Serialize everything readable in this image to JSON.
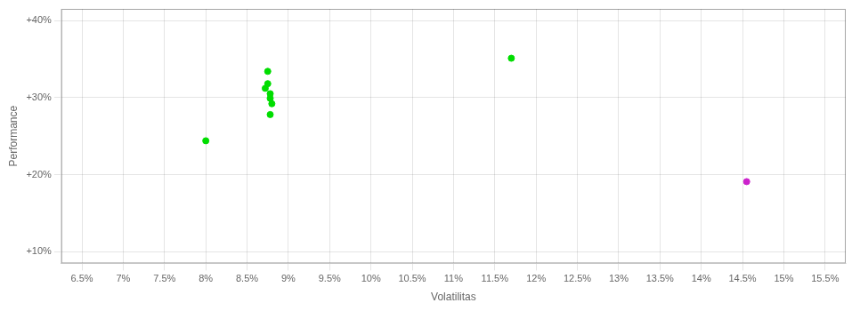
{
  "chart_data": {
    "type": "scatter",
    "xlabel": "Volatilitas",
    "ylabel": "Performance",
    "xlim": [
      0.0625,
      0.1575
    ],
    "ylim": [
      0.085,
      0.415
    ],
    "xticks": [
      {
        "value": 0.065,
        "label": "6.5%"
      },
      {
        "value": 0.07,
        "label": "7%"
      },
      {
        "value": 0.075,
        "label": "7.5%"
      },
      {
        "value": 0.08,
        "label": "8%"
      },
      {
        "value": 0.085,
        "label": "8.5%"
      },
      {
        "value": 0.09,
        "label": "9%"
      },
      {
        "value": 0.095,
        "label": "9.5%"
      },
      {
        "value": 0.1,
        "label": "10%"
      },
      {
        "value": 0.105,
        "label": "10.5%"
      },
      {
        "value": 0.11,
        "label": "11%"
      },
      {
        "value": 0.115,
        "label": "11.5%"
      },
      {
        "value": 0.12,
        "label": "12%"
      },
      {
        "value": 0.125,
        "label": "12.5%"
      },
      {
        "value": 0.13,
        "label": "13%"
      },
      {
        "value": 0.135,
        "label": "13.5%"
      },
      {
        "value": 0.14,
        "label": "14%"
      },
      {
        "value": 0.145,
        "label": "14.5%"
      },
      {
        "value": 0.15,
        "label": "15%"
      },
      {
        "value": 0.155,
        "label": "15.5%"
      }
    ],
    "yticks": [
      {
        "value": 0.1,
        "label": "+10%"
      },
      {
        "value": 0.2,
        "label": "+20%"
      },
      {
        "value": 0.3,
        "label": "+30%"
      },
      {
        "value": 0.4,
        "label": "+40%"
      }
    ],
    "grid": true,
    "series": [
      {
        "color": "#00dd00",
        "x": [
          0.0875,
          0.0875,
          0.0872,
          0.0878,
          0.0878,
          0.088,
          0.0878,
          0.08,
          0.117
        ],
        "values": [
          0.334,
          0.318,
          0.312,
          0.305,
          0.299,
          0.292,
          0.278,
          0.244,
          0.351
        ]
      },
      {
        "color": "#cc22cc",
        "x": [
          0.1455
        ],
        "values": [
          0.191
        ]
      }
    ]
  }
}
